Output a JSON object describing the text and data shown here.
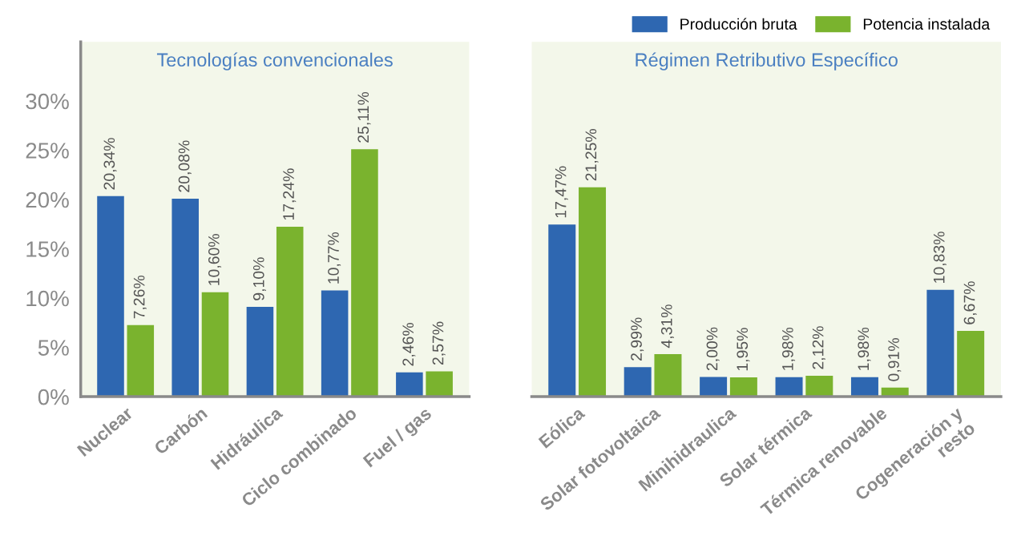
{
  "chart_data": [
    {
      "type": "bar",
      "title": "Tecnologías convencionales",
      "categories": [
        "Nuclear",
        "Carbón",
        "Hidráulica",
        "Ciclo combinado",
        "Fuel / gas"
      ],
      "series": [
        {
          "color": "#2e67b1",
          "values": [
            20.34,
            20.08,
            9.1,
            10.77,
            2.46
          ],
          "value_labels": [
            "20,34%",
            "20,08%",
            "9,10%",
            "10,77%",
            "2,46%"
          ]
        },
        {
          "color": "#7ab32e",
          "values": [
            7.26,
            10.6,
            17.24,
            25.11,
            2.57
          ],
          "value_labels": [
            "7,26%",
            "10,60%",
            "17,24%",
            "25,11%",
            "2,57%"
          ]
        }
      ],
      "ylim": [
        0,
        36
      ],
      "yticks": [
        {
          "value": 0,
          "label": "0%"
        },
        {
          "value": 5,
          "label": "5%"
        },
        {
          "value": 10,
          "label": "10%"
        },
        {
          "value": 15,
          "label": "15%"
        },
        {
          "value": 20,
          "label": "20%"
        },
        {
          "value": 25,
          "label": "25%"
        },
        {
          "value": 30,
          "label": "30%"
        }
      ],
      "grid": false,
      "legend": false
    },
    {
      "type": "bar",
      "title": "Régimen Retributivo Específico",
      "categories": [
        "Eólica",
        "Solar fotovoltaica",
        "Minihidraulica",
        "Solar térmica",
        "Térmica renovable",
        "Cogeneración y\nresto"
      ],
      "series": [
        {
          "name": "Producción bruta",
          "color": "#2e67b1",
          "values": [
            17.47,
            2.99,
            2.0,
            1.98,
            1.98,
            10.83
          ],
          "value_labels": [
            "17,47%",
            "2,99%",
            "2,00%",
            "1,98%",
            "1,98%",
            "10,83%"
          ]
        },
        {
          "name": "Potencia instalada",
          "color": "#7ab32e",
          "values": [
            21.25,
            4.31,
            1.95,
            2.12,
            0.91,
            6.67
          ],
          "value_labels": [
            "21,25%",
            "4,31%",
            "1,95%",
            "2,12%",
            "0,91%",
            "6,67%"
          ]
        }
      ],
      "ylim": [
        0,
        36
      ],
      "tick_labels": "x",
      "grid": false,
      "legend": "top right"
    }
  ]
}
